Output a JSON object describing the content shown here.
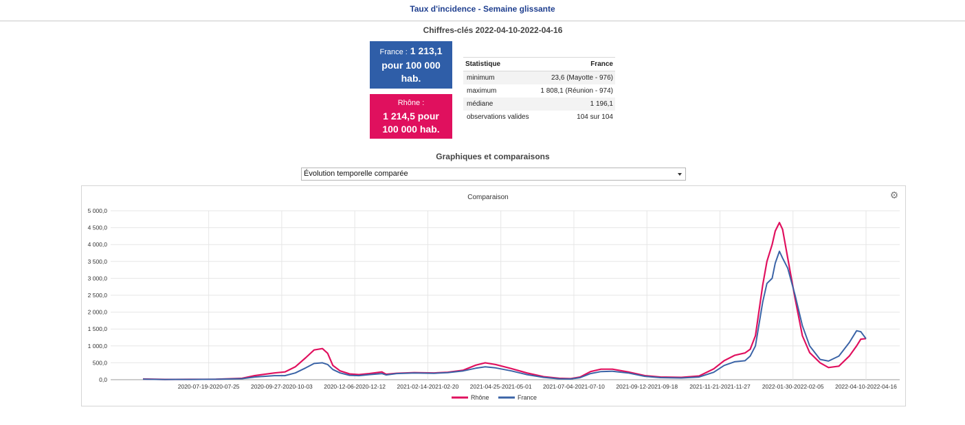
{
  "page_title": "Taux d'incidence - Semaine glissante",
  "key_figures": {
    "title": "Chiffres-clés 2022-04-10-2022-04-16",
    "france": {
      "label": "France :",
      "value": "1 213,1 pour 100 000 hab.",
      "color": "#2f5ea8"
    },
    "rhone": {
      "label": "Rhône :",
      "value": "1 214,5 pour 100 000 hab.",
      "color": "#e0105e"
    }
  },
  "stats_table": {
    "headers": [
      "Statistique",
      "France"
    ],
    "rows": [
      [
        "minimum",
        "23,6 (Mayotte - 976)"
      ],
      [
        "maximum",
        "1 808,1 (Réunion - 974)"
      ],
      [
        "médiane",
        "1 196,1"
      ],
      [
        "observations valides",
        "104 sur 104"
      ]
    ]
  },
  "graphs_title": "Graphiques et comparaisons",
  "select": {
    "value": "Évolution temporelle comparée"
  },
  "icons": {
    "settings": "gear-icon",
    "dropdown": "caret-down-icon"
  },
  "chart_data": {
    "type": "line",
    "title": "Comparaison",
    "xlabel": "",
    "ylabel": "",
    "ylim": [
      0,
      5000
    ],
    "y_ticks": [
      "0,0",
      "500,0",
      "1 000,0",
      "1 500,0",
      "2 000,0",
      "2 500,0",
      "3 000,0",
      "3 500,0",
      "4 000,0",
      "4 500,0",
      "5 000,0"
    ],
    "x_range": [
      "2020-05-17",
      "2022-04-10"
    ],
    "x_ticks": [
      {
        "label": "2020-07-19-2020-07-25",
        "date": "2020-07-19"
      },
      {
        "label": "2020-09-27-2020-10-03",
        "date": "2020-09-27"
      },
      {
        "label": "2020-12-06-2020-12-12",
        "date": "2020-12-06"
      },
      {
        "label": "2021-02-14-2021-02-20",
        "date": "2021-02-14"
      },
      {
        "label": "2021-04-25-2021-05-01",
        "date": "2021-04-25"
      },
      {
        "label": "2021-07-04-2021-07-10",
        "date": "2021-07-04"
      },
      {
        "label": "2021-09-12-2021-09-18",
        "date": "2021-09-12"
      },
      {
        "label": "2021-11-21-2021-11-27",
        "date": "2021-11-21"
      },
      {
        "label": "2022-01-30-2022-02-05",
        "date": "2022-01-30"
      },
      {
        "label": "2022-04-10-2022-04-16",
        "date": "2022-04-10"
      }
    ],
    "legend_position": "bottom",
    "grid": true,
    "series": [
      {
        "name": "Rhône",
        "color": "#e0105e",
        "points": [
          [
            "2020-05-17",
            20
          ],
          [
            "2020-06-07",
            8
          ],
          [
            "2020-07-01",
            10
          ],
          [
            "2020-07-26",
            15
          ],
          [
            "2020-08-20",
            40
          ],
          [
            "2020-09-01",
            120
          ],
          [
            "2020-09-20",
            200
          ],
          [
            "2020-09-30",
            230
          ],
          [
            "2020-10-10",
            380
          ],
          [
            "2020-10-20",
            650
          ],
          [
            "2020-10-28",
            880
          ],
          [
            "2020-11-05",
            920
          ],
          [
            "2020-11-10",
            780
          ],
          [
            "2020-11-15",
            420
          ],
          [
            "2020-11-22",
            260
          ],
          [
            "2020-12-01",
            170
          ],
          [
            "2020-12-10",
            150
          ],
          [
            "2020-12-20",
            180
          ],
          [
            "2021-01-01",
            230
          ],
          [
            "2021-01-05",
            160
          ],
          [
            "2021-01-15",
            190
          ],
          [
            "2021-02-01",
            210
          ],
          [
            "2021-02-20",
            200
          ],
          [
            "2021-03-05",
            220
          ],
          [
            "2021-03-20",
            280
          ],
          [
            "2021-04-01",
            430
          ],
          [
            "2021-04-10",
            500
          ],
          [
            "2021-04-20",
            450
          ],
          [
            "2021-05-05",
            330
          ],
          [
            "2021-05-20",
            200
          ],
          [
            "2021-06-05",
            90
          ],
          [
            "2021-06-20",
            40
          ],
          [
            "2021-07-01",
            30
          ],
          [
            "2021-07-10",
            80
          ],
          [
            "2021-07-20",
            240
          ],
          [
            "2021-07-30",
            310
          ],
          [
            "2021-08-10",
            310
          ],
          [
            "2021-08-25",
            230
          ],
          [
            "2021-09-10",
            120
          ],
          [
            "2021-09-25",
            80
          ],
          [
            "2021-10-15",
            70
          ],
          [
            "2021-11-01",
            110
          ],
          [
            "2021-11-15",
            320
          ],
          [
            "2021-11-25",
            560
          ],
          [
            "2021-12-05",
            720
          ],
          [
            "2021-12-15",
            790
          ],
          [
            "2021-12-20",
            900
          ],
          [
            "2021-12-25",
            1300
          ],
          [
            "2022-01-01",
            2800
          ],
          [
            "2022-01-05",
            3500
          ],
          [
            "2022-01-10",
            4000
          ],
          [
            "2022-01-13",
            4400
          ],
          [
            "2022-01-17",
            4650
          ],
          [
            "2022-01-20",
            4450
          ],
          [
            "2022-01-25",
            3600
          ],
          [
            "2022-02-01",
            2400
          ],
          [
            "2022-02-08",
            1300
          ],
          [
            "2022-02-15",
            800
          ],
          [
            "2022-02-25",
            500
          ],
          [
            "2022-03-05",
            360
          ],
          [
            "2022-03-15",
            400
          ],
          [
            "2022-03-25",
            700
          ],
          [
            "2022-04-01",
            1000
          ],
          [
            "2022-04-05",
            1200
          ],
          [
            "2022-04-10",
            1214.5
          ]
        ]
      },
      {
        "name": "France",
        "color": "#3a63a6",
        "points": [
          [
            "2020-05-17",
            15
          ],
          [
            "2020-06-07",
            6
          ],
          [
            "2020-07-01",
            8
          ],
          [
            "2020-07-26",
            12
          ],
          [
            "2020-08-20",
            30
          ],
          [
            "2020-09-01",
            80
          ],
          [
            "2020-09-20",
            120
          ],
          [
            "2020-09-30",
            120
          ],
          [
            "2020-10-10",
            200
          ],
          [
            "2020-10-20",
            350
          ],
          [
            "2020-10-28",
            480
          ],
          [
            "2020-11-05",
            500
          ],
          [
            "2020-11-10",
            450
          ],
          [
            "2020-11-15",
            300
          ],
          [
            "2020-11-22",
            200
          ],
          [
            "2020-12-01",
            130
          ],
          [
            "2020-12-10",
            120
          ],
          [
            "2020-12-20",
            150
          ],
          [
            "2021-01-01",
            180
          ],
          [
            "2021-01-05",
            140
          ],
          [
            "2021-01-15",
            180
          ],
          [
            "2021-02-01",
            200
          ],
          [
            "2021-02-20",
            190
          ],
          [
            "2021-03-05",
            210
          ],
          [
            "2021-03-20",
            260
          ],
          [
            "2021-04-01",
            340
          ],
          [
            "2021-04-10",
            380
          ],
          [
            "2021-04-20",
            350
          ],
          [
            "2021-05-05",
            260
          ],
          [
            "2021-05-20",
            150
          ],
          [
            "2021-06-05",
            70
          ],
          [
            "2021-06-20",
            25
          ],
          [
            "2021-07-01",
            20
          ],
          [
            "2021-07-10",
            60
          ],
          [
            "2021-07-20",
            180
          ],
          [
            "2021-07-30",
            240
          ],
          [
            "2021-08-10",
            250
          ],
          [
            "2021-08-25",
            200
          ],
          [
            "2021-09-10",
            100
          ],
          [
            "2021-09-25",
            60
          ],
          [
            "2021-10-15",
            50
          ],
          [
            "2021-11-01",
            80
          ],
          [
            "2021-11-15",
            220
          ],
          [
            "2021-11-25",
            420
          ],
          [
            "2021-12-05",
            530
          ],
          [
            "2021-12-15",
            560
          ],
          [
            "2021-12-20",
            700
          ],
          [
            "2021-12-25",
            1000
          ],
          [
            "2022-01-01",
            2300
          ],
          [
            "2022-01-05",
            2850
          ],
          [
            "2022-01-10",
            3000
          ],
          [
            "2022-01-13",
            3450
          ],
          [
            "2022-01-17",
            3800
          ],
          [
            "2022-01-20",
            3600
          ],
          [
            "2022-01-25",
            3300
          ],
          [
            "2022-02-01",
            2500
          ],
          [
            "2022-02-08",
            1600
          ],
          [
            "2022-02-15",
            1000
          ],
          [
            "2022-02-25",
            600
          ],
          [
            "2022-03-05",
            550
          ],
          [
            "2022-03-15",
            700
          ],
          [
            "2022-03-25",
            1100
          ],
          [
            "2022-04-01",
            1450
          ],
          [
            "2022-04-05",
            1420
          ],
          [
            "2022-04-10",
            1213.1
          ]
        ]
      }
    ]
  }
}
